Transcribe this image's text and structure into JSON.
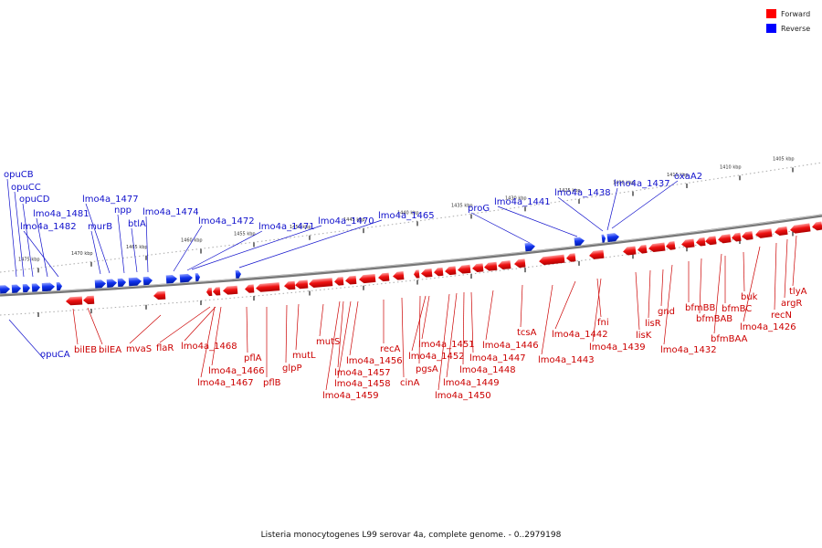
{
  "legend": [
    {
      "label": "Forward",
      "color": "#ff0000"
    },
    {
      "label": "Reverse",
      "color": "#0000ff"
    }
  ],
  "caption": "Listeria monocytogenes L99 serovar 4a, complete genome. - 0..2979198",
  "colors": {
    "forward": "#ee1111",
    "reverse": "#1133ee",
    "forward_text": "#cc0000",
    "reverse_text": "#1111cc",
    "backbone": "#888888"
  },
  "ticks": [
    "1475 kbp",
    "1470 kbp",
    "1465 kbp",
    "1460 kbp",
    "1455 kbp",
    "1450 kbp",
    "1445 kbp",
    "1440 kbp",
    "1435 kbp",
    "1430 kbp",
    "1425 kbp",
    "1420 kbp",
    "1415 kbp",
    "1410 kbp",
    "1405 kbp"
  ],
  "reverse_labels": [
    "opuCB",
    "opuCC",
    "opuCD",
    "lmo4a_1481",
    "lmo4a_1482",
    "lmo4a_1477",
    "murB",
    "npp",
    "btlA",
    "lmo4a_1474",
    "lmo4a_1472",
    "lmo4a_1471",
    "lmo4a_1470",
    "lmo4a_1465",
    "proG",
    "lmo4a_1441",
    "lmo4a_1438",
    "lmo4a_1437",
    "oxaA2",
    "opuCA"
  ],
  "forward_labels": [
    "bilEB",
    "bilEA",
    "mvaS",
    "flaR",
    "lmo4a_1468",
    "lmo4a_1466",
    "lmo4a_1467",
    "pflA",
    "pflB",
    "glpP",
    "mutL",
    "mutS",
    "lmo4a_1457",
    "lmo4a_1458",
    "lmo4a_1459",
    "lmo4a_1456",
    "recA",
    "cinA",
    "pgsA",
    "lmo4a_1452",
    "lmo4a_1451",
    "lmo4a_1450",
    "lmo4a_1449",
    "lmo4a_1448",
    "lmo4a_1447",
    "lmo4a_1446",
    "tcsA",
    "lmo4a_1443",
    "lmo4a_1442",
    "fni",
    "lmo4a_1439",
    "lisK",
    "lisR",
    "gnd",
    "lmo4a_1432",
    "bfmBB",
    "bfmBAB",
    "bfmBAA",
    "bfmBC",
    "buk",
    "lmo4a_1426",
    "recN",
    "argR",
    "tlyA"
  ]
}
